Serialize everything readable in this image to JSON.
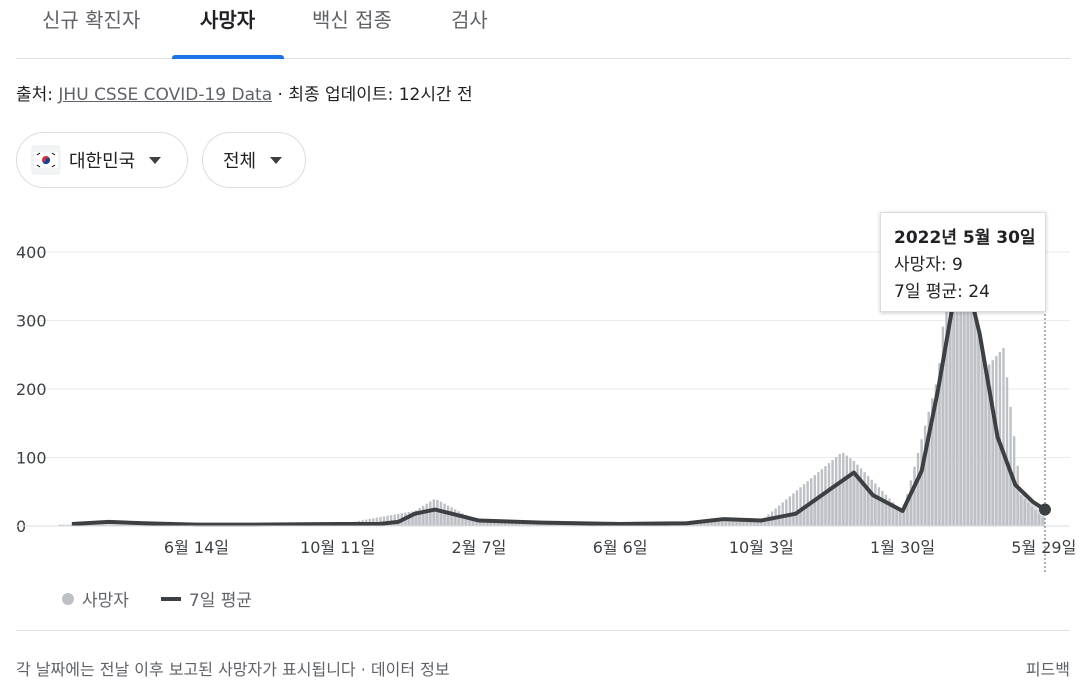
{
  "tabs": [
    {
      "label": "신규 확진자"
    },
    {
      "label": "사망자"
    },
    {
      "label": "백신 접종"
    },
    {
      "label": "검사"
    }
  ],
  "source": {
    "prefix": "출처: ",
    "link": "JHU CSSE COVID-19 Data",
    "suffix": " · 최종 업데이트: 12시간 전"
  },
  "filters": {
    "country": "대한민국",
    "country_flag_icon": "korea-flag-icon",
    "scope": "전체"
  },
  "tooltip": {
    "date": "2022년 5월 30일",
    "deaths": "사망자: 9",
    "avg": "7일 평균: 24"
  },
  "legend": {
    "bars": "사망자",
    "line": "7일 평균"
  },
  "footer": {
    "text": "각 날짜에는 전날 이후 보고된 사망자가 표시됩니다 · 데이터 정보",
    "feedback": "피드백"
  },
  "colors": {
    "bar": "#bdc1c6",
    "line": "#3c4043",
    "accent": "#1a73e8",
    "grid": "#e8eaed"
  },
  "chart_data": {
    "type": "line",
    "title": "",
    "xlabel": "",
    "ylabel": "",
    "ylim": [
      0,
      400
    ],
    "yticks": [
      0,
      100,
      200,
      300,
      400
    ],
    "xtick_labels": [
      "6월 14일",
      "10월 11일",
      "2월 7일",
      "6월 6일",
      "10월 3일",
      "1월 30일",
      "5월 29일"
    ],
    "series": [
      {
        "name": "7일 평균",
        "points": [
          [
            "2020-03-01",
            3
          ],
          [
            "2020-04-01",
            6
          ],
          [
            "2020-05-01",
            4
          ],
          [
            "2020-06-14",
            2
          ],
          [
            "2020-08-01",
            2
          ],
          [
            "2020-10-11",
            3
          ],
          [
            "2020-11-15",
            3
          ],
          [
            "2020-12-01",
            6
          ],
          [
            "2020-12-15",
            18
          ],
          [
            "2021-01-01",
            24
          ],
          [
            "2021-01-15",
            18
          ],
          [
            "2021-02-07",
            8
          ],
          [
            "2021-04-01",
            5
          ],
          [
            "2021-06-06",
            3
          ],
          [
            "2021-08-01",
            4
          ],
          [
            "2021-09-01",
            10
          ],
          [
            "2021-10-03",
            8
          ],
          [
            "2021-11-01",
            18
          ],
          [
            "2021-12-01",
            55
          ],
          [
            "2021-12-20",
            78
          ],
          [
            "2022-01-05",
            45
          ],
          [
            "2022-01-30",
            22
          ],
          [
            "2022-02-15",
            80
          ],
          [
            "2022-03-01",
            200
          ],
          [
            "2022-03-15",
            340
          ],
          [
            "2022-03-25",
            360
          ],
          [
            "2022-04-05",
            280
          ],
          [
            "2022-04-20",
            130
          ],
          [
            "2022-05-05",
            60
          ],
          [
            "2022-05-20",
            35
          ],
          [
            "2022-05-30",
            24
          ]
        ]
      },
      {
        "name": "사망자",
        "points": [
          [
            "2020-03-01",
            2
          ],
          [
            "2020-06-14",
            1
          ],
          [
            "2020-10-11",
            2
          ],
          [
            "2020-12-15",
            22
          ],
          [
            "2021-01-01",
            40
          ],
          [
            "2021-02-07",
            6
          ],
          [
            "2021-06-06",
            2
          ],
          [
            "2021-10-03",
            8
          ],
          [
            "2021-12-10",
            108
          ],
          [
            "2021-12-20",
            95
          ],
          [
            "2022-01-30",
            20
          ],
          [
            "2022-03-01",
            220
          ],
          [
            "2022-03-10",
            380
          ],
          [
            "2022-03-18",
            400
          ],
          [
            "2022-03-28",
            340
          ],
          [
            "2022-04-10",
            230
          ],
          [
            "2022-04-25",
            260
          ],
          [
            "2022-05-10",
            45
          ],
          [
            "2022-05-30",
            9
          ]
        ]
      }
    ],
    "highlight": {
      "date": "2022-05-30",
      "deaths": 9,
      "avg": 24
    }
  }
}
